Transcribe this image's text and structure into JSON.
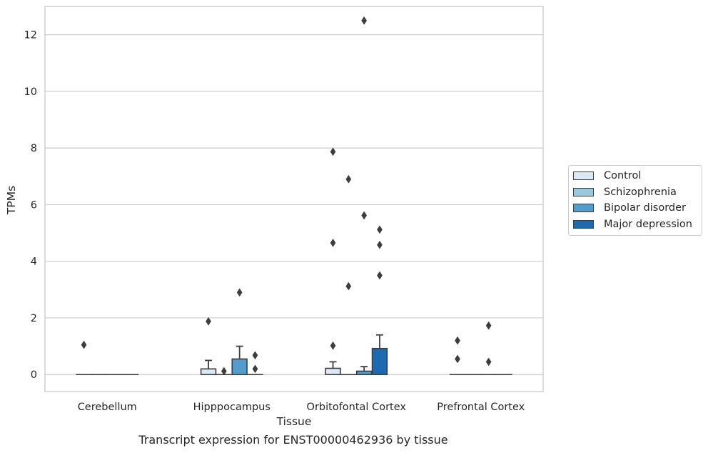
{
  "chart_data": {
    "type": "bar",
    "title": "",
    "caption": "Transcript expression for ENST00000462936 by tissue",
    "xlabel": "Tissue",
    "ylabel": "TPMs",
    "ylim": [
      -0.6,
      13.0
    ],
    "yticks": [
      0,
      2,
      4,
      6,
      8,
      10,
      12
    ],
    "grid": true,
    "legend_placement": "right",
    "categories": [
      "Cerebellum",
      "Hipppocampus",
      "Orbitofontal Cortex",
      "Prefrontal Cortex"
    ],
    "series": [
      {
        "name": "Control",
        "color": "#dbe9f6",
        "values": [
          0.0,
          0.2,
          0.22,
          0.0
        ],
        "errors": [
          0.0,
          0.5,
          0.45,
          0.0
        ],
        "outliers": [
          [
            1.05
          ],
          [
            1.88
          ],
          [
            1.02,
            4.65,
            7.87
          ],
          [
            0.55,
            1.2
          ]
        ]
      },
      {
        "name": "Schizophrenia",
        "color": "#9ac8e0",
        "values": [
          0.0,
          0.0,
          0.0,
          0.0
        ],
        "errors": [
          0.0,
          0.0,
          0.0,
          0.0
        ],
        "outliers": [
          [],
          [
            0.12
          ],
          [
            3.12,
            6.9
          ],
          []
        ]
      },
      {
        "name": "Bipolar disorder",
        "color": "#529dcc",
        "values": [
          0.0,
          0.55,
          0.12,
          0.0
        ],
        "errors": [
          0.0,
          1.0,
          0.28,
          0.0
        ],
        "outliers": [
          [],
          [
            2.9
          ],
          [
            5.62,
            12.5
          ],
          [
            0.45,
            1.73
          ]
        ]
      },
      {
        "name": "Major depression",
        "color": "#1c6aaf",
        "values": [
          0.0,
          0.0,
          0.92,
          0.0
        ],
        "errors": [
          0.0,
          0.0,
          1.4,
          0.0
        ],
        "outliers": [
          [],
          [
            0.2,
            0.68
          ],
          [
            3.5,
            4.58,
            5.12
          ],
          []
        ]
      }
    ]
  }
}
